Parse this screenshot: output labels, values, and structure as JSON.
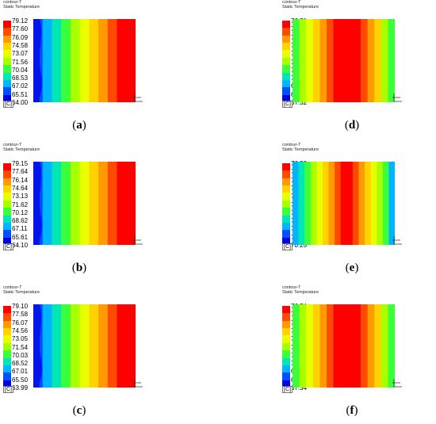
{
  "panels": [
    {
      "id": "a",
      "col": 0,
      "row": 0,
      "header": [
        "contour-T",
        "Static Temperature"
      ],
      "unit": "[C]",
      "caption": {
        "open": "(",
        "letter": "a",
        "close": ")"
      },
      "levels": [
        "79.12",
        "77.60",
        "76.09",
        "74.58",
        "73.07",
        "71.56",
        "70.04",
        "68.53",
        "67.02",
        "65.51",
        "64.00"
      ],
      "pattern": "gradient"
    },
    {
      "id": "d",
      "col": 1,
      "row": 0,
      "header": [
        "contour-T",
        "Static Temperature"
      ],
      "unit": "[C]",
      "caption": {
        "open": "(",
        "letter": "d",
        "close": ")"
      },
      "levels": [
        "76.71",
        "75.77",
        "74.84",
        "73.90",
        "72.96",
        "72.02",
        "71.08",
        "70.14",
        "69.20",
        "68.26",
        "67.32"
      ],
      "pattern": "center"
    },
    {
      "id": "b",
      "col": 0,
      "row": 1,
      "header": [
        "contour-T",
        "Static Temperature"
      ],
      "unit": "[C]",
      "caption": {
        "open": "(",
        "letter": "b",
        "close": ")"
      },
      "levels": [
        "79.15",
        "77.64",
        "76.14",
        "74.64",
        "73.13",
        "71.62",
        "70.12",
        "68.62",
        "67.11",
        "65.61",
        "64.10"
      ],
      "pattern": "gradient"
    },
    {
      "id": "e",
      "col": 1,
      "row": 1,
      "header": [
        "contour-T",
        "Static Temperature"
      ],
      "unit": "[C]",
      "caption": {
        "open": "(",
        "letter": "e",
        "close": ")"
      },
      "levels": [
        "76.53",
        "75.90",
        "75.27",
        "74.64",
        "74.02",
        "73.39",
        "72.76",
        "72.13",
        "71.50",
        "70.87",
        "70.25"
      ],
      "pattern": "center-narrow"
    },
    {
      "id": "c",
      "col": 0,
      "row": 2,
      "header": [
        "contour-T",
        "Static Temperature"
      ],
      "unit": "[C]",
      "caption": {
        "open": "(",
        "letter": "c",
        "close": ")"
      },
      "levels": [
        "79.10",
        "77.58",
        "76.07",
        "74.56",
        "73.05",
        "71.54",
        "70.03",
        "68.52",
        "67.01",
        "65.50",
        "63.99"
      ],
      "pattern": "gradient"
    },
    {
      "id": "f",
      "col": 1,
      "row": 2,
      "header": [
        "contour-T",
        "Static Temperature"
      ],
      "unit": "[C]",
      "caption": {
        "open": "(",
        "letter": "f",
        "close": ")"
      },
      "levels": [
        "76.74",
        "75.80",
        "74.86",
        "73.92",
        "72.98",
        "72.04",
        "71.10",
        "70.16",
        "69.22",
        "68.28",
        "67.34"
      ],
      "pattern": "center"
    }
  ],
  "colormap": [
    "#ff0000",
    "#ff4a00",
    "#ff9a00",
    "#ffd200",
    "#e8ff00",
    "#a8ff00",
    "#3cff3c",
    "#00e6b4",
    "#00b4ff",
    "#0050ff",
    "#0000e6"
  ]
}
